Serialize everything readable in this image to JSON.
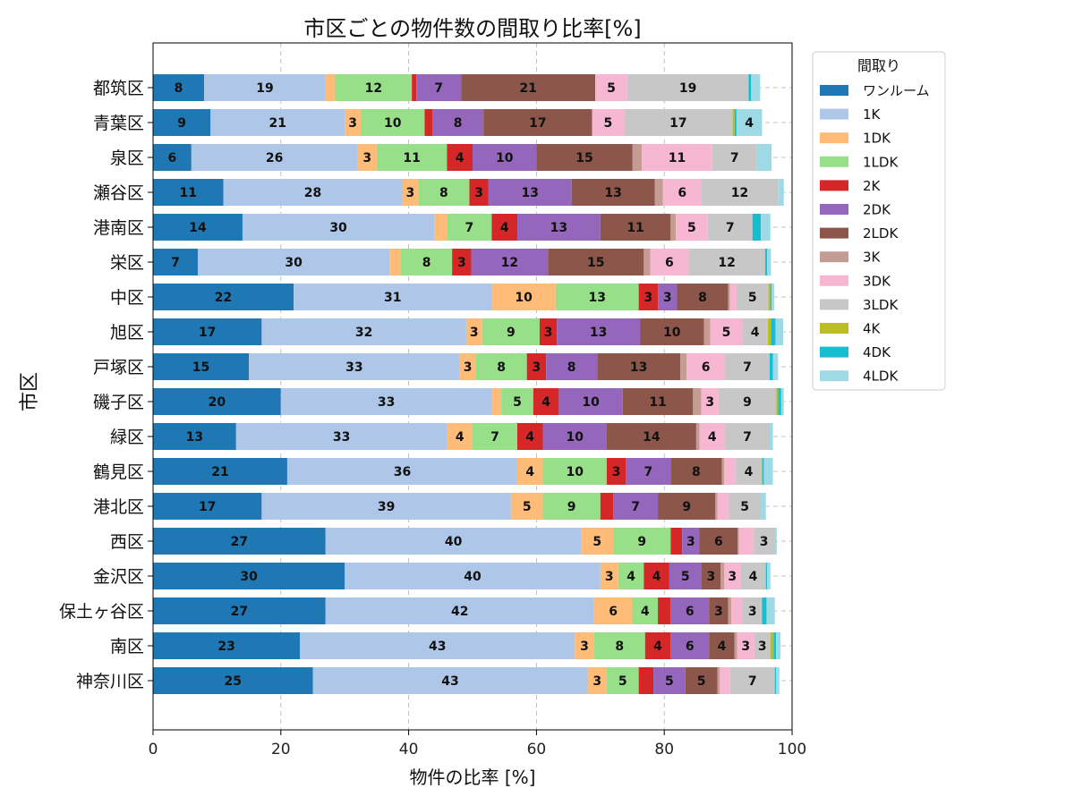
{
  "chart_data": {
    "type": "bar",
    "orientation": "horizontal",
    "stacked": true,
    "title": "市区ごとの物件数の間取り比率[%]",
    "xlabel": "物件の比率 [%]",
    "ylabel": "市区",
    "xlim": [
      0,
      100
    ],
    "xticks": [
      0,
      20,
      40,
      60,
      80,
      100
    ],
    "grid": true,
    "legend_title": "間取り",
    "legend_position": "outside-top-right",
    "categories": [
      "都筑区",
      "青葉区",
      "泉区",
      "瀬谷区",
      "港南区",
      "栄区",
      "中区",
      "旭区",
      "戸塚区",
      "磯子区",
      "緑区",
      "鶴見区",
      "港北区",
      "西区",
      "金沢区",
      "保土ヶ谷区",
      "南区",
      "神奈川区"
    ],
    "series": [
      {
        "name": "ワンルーム",
        "color": "#1f77b4",
        "values": [
          8,
          9,
          6,
          11,
          14,
          7,
          22,
          17,
          15,
          20,
          13,
          21,
          17,
          27,
          30,
          27,
          23,
          25
        ]
      },
      {
        "name": "1K",
        "color": "#aec7e8",
        "values": [
          19,
          21,
          26,
          28,
          30,
          30,
          31,
          32,
          33,
          33,
          33,
          36,
          39,
          40,
          40,
          42,
          43,
          43
        ]
      },
      {
        "name": "1DK",
        "color": "#ffbb78",
        "values": [
          1.5,
          2.5,
          3,
          2.5,
          2,
          1.8,
          10,
          2.5,
          2.5,
          1.5,
          4,
          4,
          5,
          5,
          2.8,
          6,
          3,
          3
        ]
      },
      {
        "name": "1LDK",
        "color": "#98df8a",
        "values": [
          12,
          10,
          11,
          8,
          7,
          8,
          13,
          9,
          8,
          5,
          7,
          10,
          9,
          9,
          4,
          4,
          8,
          5
        ]
      },
      {
        "name": "2K",
        "color": "#d62728",
        "values": [
          0.7,
          1.2,
          4,
          3,
          4,
          3,
          3,
          2.7,
          3,
          4,
          4,
          3,
          2,
          1.8,
          4,
          2,
          4,
          2.3
        ]
      },
      {
        "name": "2DK",
        "color": "#9467bd",
        "values": [
          7,
          8,
          10,
          13,
          13,
          12,
          3,
          13,
          8,
          10,
          10,
          7,
          7,
          2.7,
          5,
          6,
          6,
          5
        ]
      },
      {
        "name": "2LDK",
        "color": "#8c564b",
        "values": [
          21,
          17,
          15,
          13,
          11,
          15,
          8,
          10,
          13,
          11,
          14,
          8,
          9,
          6,
          3,
          3,
          4,
          5
        ]
      },
      {
        "name": "3K",
        "color": "#c49c94",
        "values": [
          0,
          0,
          1.5,
          1.3,
          0.8,
          1,
          0.3,
          1,
          1,
          1.3,
          0.5,
          0.4,
          0.3,
          0.2,
          0.6,
          0.5,
          0.4,
          0.4
        ]
      },
      {
        "name": "3DK",
        "color": "#f7b6d2",
        "values": [
          5,
          5,
          11,
          6,
          5,
          6,
          1,
          5,
          6,
          2.7,
          4,
          1.8,
          1.8,
          2.3,
          2.5,
          1.8,
          2.7,
          1.6
        ]
      },
      {
        "name": "3LDK",
        "color": "#c7c7c7",
        "values": [
          19,
          17,
          7,
          12,
          7,
          12,
          5,
          4,
          7,
          9,
          7,
          4,
          5,
          3.2,
          4,
          3,
          2.5,
          7
        ]
      },
      {
        "name": "4K",
        "color": "#bcbd22",
        "values": [
          0,
          0.3,
          0,
          0,
          0,
          0,
          0.3,
          0.5,
          0,
          0.3,
          0,
          0.2,
          0,
          0,
          0,
          0,
          0.5,
          0
        ]
      },
      {
        "name": "4DK",
        "color": "#17becf",
        "values": [
          0.4,
          0.3,
          0,
          0,
          1.3,
          0.3,
          0.2,
          0.7,
          0.5,
          0.5,
          0,
          0.2,
          0,
          0,
          0.2,
          0.7,
          0.4,
          0.2
        ]
      },
      {
        "name": "4LDK",
        "color": "#9edae5",
        "values": [
          1.4,
          4,
          2.3,
          0.9,
          1.5,
          0.6,
          0.4,
          1.2,
          0.8,
          0.4,
          0.5,
          1.4,
          0.8,
          0.4,
          0.5,
          1.3,
          0.7,
          0.5
        ]
      }
    ]
  }
}
